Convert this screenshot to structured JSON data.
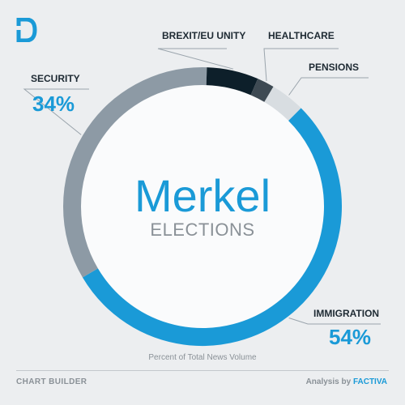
{
  "chart_data": {
    "type": "pie",
    "style": "donut",
    "center_title": "Merkel",
    "center_subtitle": "ELECTIONS",
    "caption": "Percent of Total News Volume",
    "slices": [
      {
        "label": "IMMIGRATION",
        "value": 54,
        "display": "54%",
        "color": "#1a9ad7"
      },
      {
        "label": "SECURITY",
        "value": 34,
        "display": "34%",
        "color": "#8d9aa5"
      },
      {
        "label": "BREXIT/EU UNITY",
        "value": 6,
        "display": "",
        "color": "#0d1f2a"
      },
      {
        "label": "HEALTHCARE",
        "value": 2,
        "display": "",
        "color": "#3e4a53"
      },
      {
        "label": "PENSIONS",
        "value": 4,
        "display": "",
        "color": "#d8dde1"
      }
    ]
  },
  "footer": {
    "left": "CHART BUILDER",
    "right_prefix": "Analysis by",
    "right_brand": "FACTIVA"
  },
  "logo_icon": "d-logo-icon"
}
